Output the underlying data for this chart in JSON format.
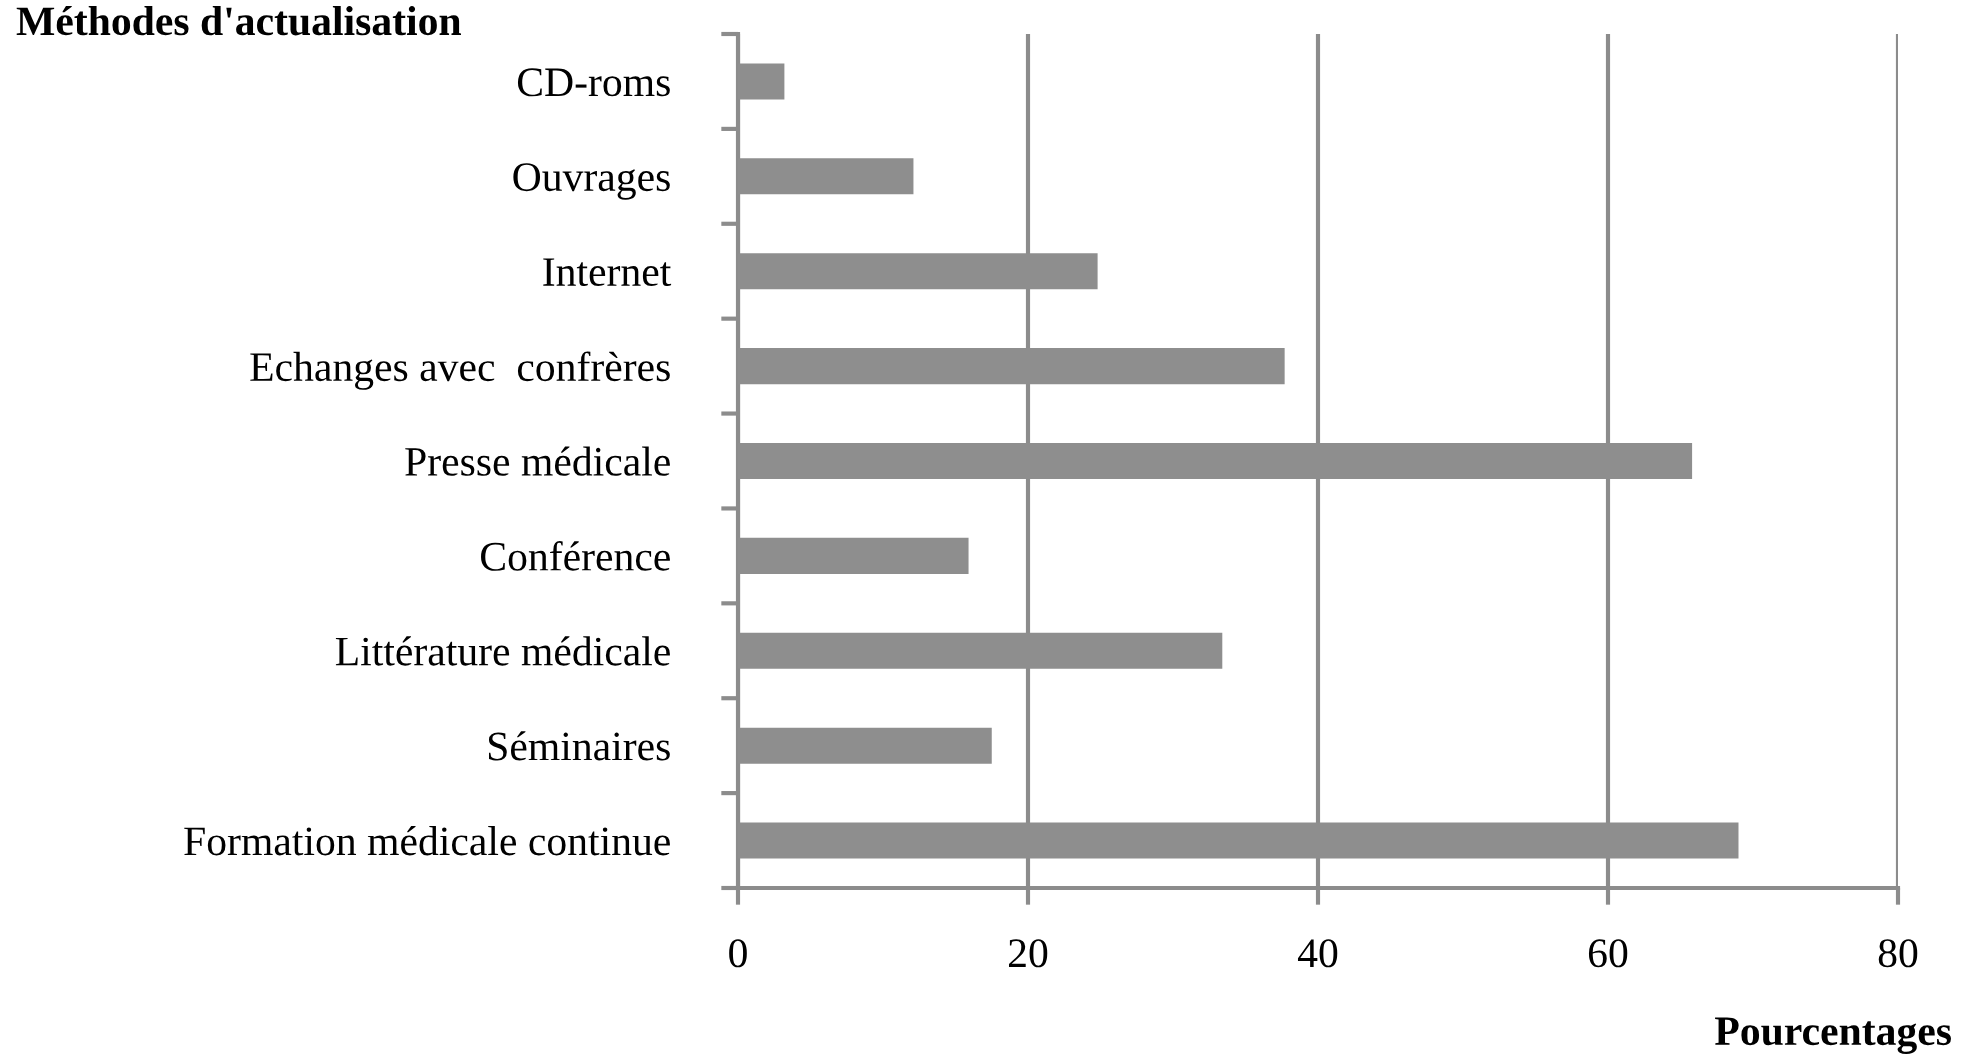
{
  "chart_data": {
    "type": "bar",
    "orientation": "horizontal",
    "title": "Méthodes d'actualisation",
    "xlabel": "Pourcentages",
    "categories": [
      "CD-roms",
      "Ouvrages",
      "Internet",
      "Echanges avec  confrères",
      "Presse médicale",
      "Conférence",
      "Littérature médicale",
      "Séminaires",
      "Formation médicale continue"
    ],
    "values": [
      3.2,
      12.1,
      24.8,
      37.7,
      65.8,
      15.9,
      33.4,
      17.5,
      69.0
    ],
    "color": "#8e8e8e",
    "xlim": [
      0,
      80
    ],
    "xticks": [
      0,
      20,
      40,
      60,
      80
    ],
    "grid": "x",
    "legend": false
  }
}
